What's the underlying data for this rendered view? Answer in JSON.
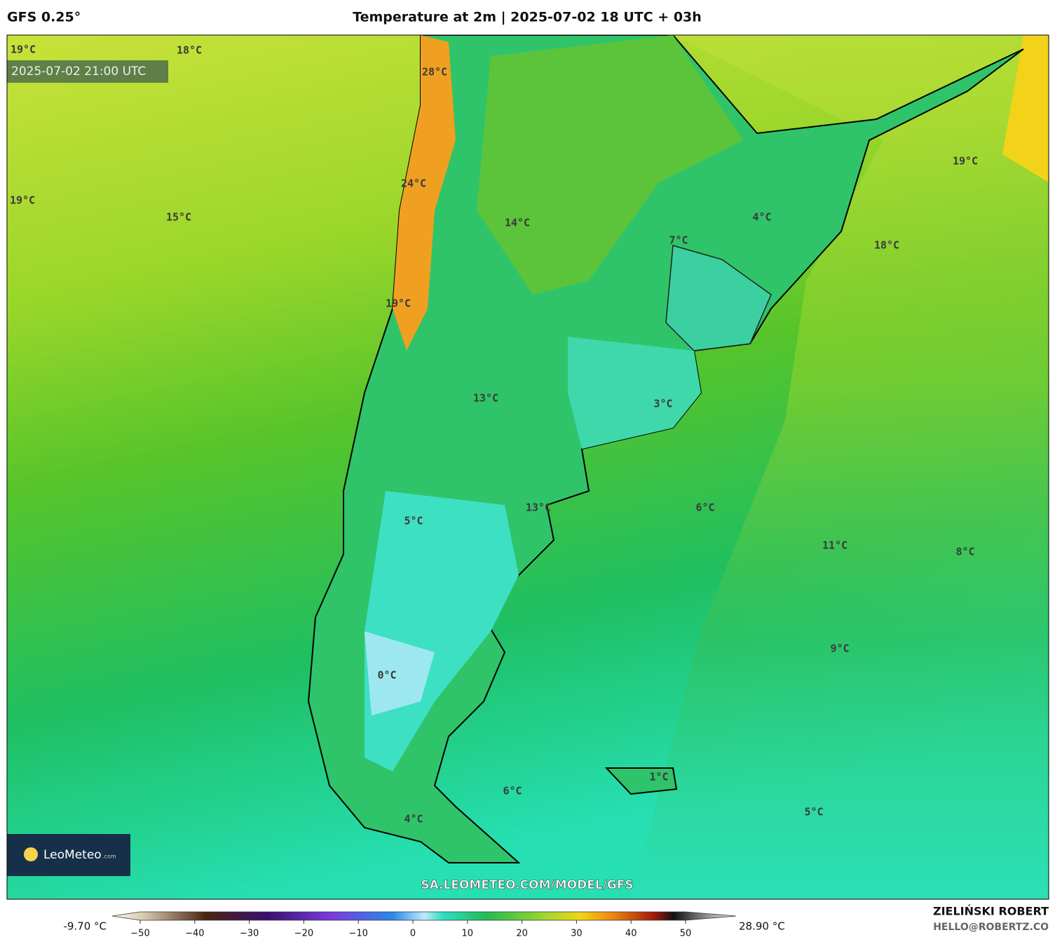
{
  "header": {
    "model": "GFS 0.25°",
    "title": "Temperature at 2m | 2025-07-02 18 UTC + 03h"
  },
  "map": {
    "valid_time": "2025-07-02 21:00 UTC",
    "labels": [
      "19°C",
      "18°C",
      "28°C",
      "24°C",
      "19°C",
      "15°C",
      "14°C",
      "7°C",
      "4°C",
      "19°C",
      "18°C",
      "19°C",
      "13°C",
      "3°C",
      "13°C",
      "5°C",
      "6°C",
      "11°C",
      "8°C",
      "9°C",
      "0°C",
      "1°C",
      "6°C",
      "5°C",
      "4°C"
    ],
    "watermark": "SA.LEOMETEO.COM/MODEL/GFS",
    "logo": {
      "name": "LeoMeteo",
      "suffix": ".com"
    }
  },
  "colorbar": {
    "min_label": "-9.70 °C",
    "max_label": "28.90 °C",
    "ticks": [
      {
        "value": -50,
        "label": "−50"
      },
      {
        "value": -40,
        "label": "−40"
      },
      {
        "value": -30,
        "label": "−30"
      },
      {
        "value": -20,
        "label": "−20"
      },
      {
        "value": -10,
        "label": "−10"
      },
      0,
      10,
      20,
      30,
      40,
      50
    ]
  },
  "footer": {
    "author": "ZIELIŃSKI ROBERT",
    "email": "HELLO@ROBERTZ.CO"
  }
}
